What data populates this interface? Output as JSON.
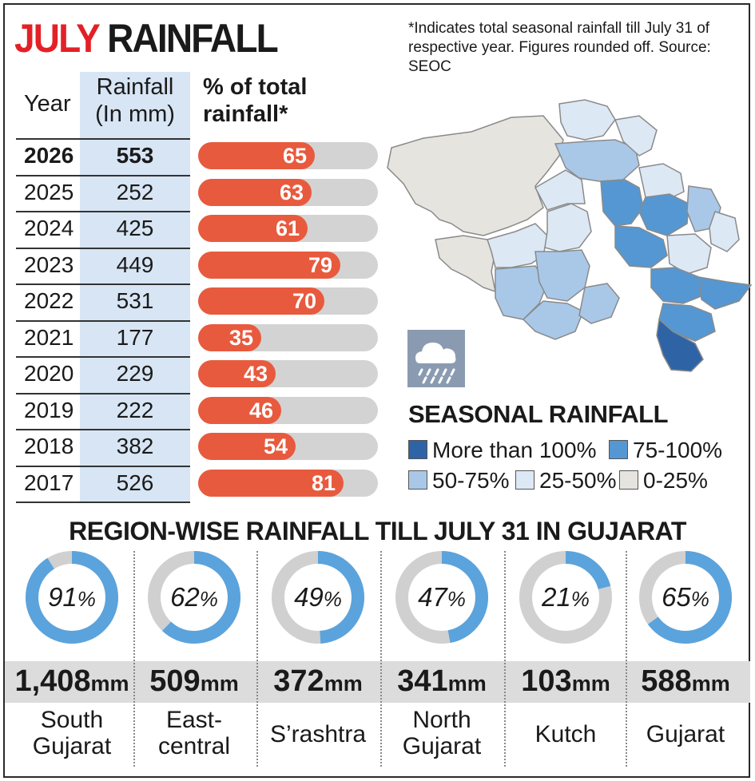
{
  "title": {
    "part1": "JULY",
    "part2": "RAINFALL"
  },
  "note": "*Indicates total seasonal rainfall till July 31 of respective year. Figures rounded off. Source: SEOC",
  "table": {
    "header_year": "Year",
    "header_rain_1": "Rainfall",
    "header_rain_2": "(In mm)",
    "header_pct_1": "% of total",
    "header_pct_2": "rainfall*"
  },
  "chart_data": [
    {
      "type": "bar",
      "title": "JULY RAINFALL",
      "categories": [
        "2026",
        "2025",
        "2024",
        "2023",
        "2022",
        "2021",
        "2020",
        "2019",
        "2018",
        "2017"
      ],
      "series": [
        {
          "name": "Rainfall (In mm)",
          "values": [
            553,
            252,
            425,
            449,
            531,
            177,
            229,
            222,
            382,
            526
          ]
        },
        {
          "name": "% of total rainfall*",
          "values": [
            65,
            63,
            61,
            79,
            70,
            35,
            43,
            46,
            54,
            81
          ]
        }
      ],
      "ylim": [
        0,
        100
      ]
    },
    {
      "type": "pie",
      "title": "REGION-WISE RAINFALL TILL JULY 31 IN GUJARAT",
      "categories": [
        "South Gujarat",
        "East-central",
        "S’rashtra",
        "North Gujarat",
        "Kutch",
        "Gujarat"
      ],
      "values": [
        91,
        62,
        49,
        47,
        21,
        65
      ],
      "mm": [
        "1,408",
        "509",
        "372",
        "341",
        "103",
        "588"
      ],
      "unit": "mm"
    }
  ],
  "map": {
    "legend_title": "SEASONAL RAINFALL",
    "legend": [
      {
        "label": "More than 100%",
        "color": "#2e64a6"
      },
      {
        "label": "75-100%",
        "color": "#5597d2"
      },
      {
        "label": "50-75%",
        "color": "#a9c8e8"
      },
      {
        "label": "25-50%",
        "color": "#dde8f5"
      },
      {
        "label": "0-25%",
        "color": "#e6e4df"
      }
    ]
  },
  "regions": [
    {
      "line1": "South",
      "line2": "Gujarat"
    },
    {
      "line1": "East-",
      "line2": "central"
    },
    {
      "line1": "S’rashtra",
      "line2": ""
    },
    {
      "line1": "North",
      "line2": "Gujarat"
    },
    {
      "line1": "Kutch",
      "line2": ""
    },
    {
      "line1": "Gujarat",
      "line2": ""
    }
  ],
  "colors": {
    "bar": "#e85a3e",
    "bar_bg": "#d3d3d3",
    "donut": "#5ba3dc",
    "donut_bg": "#d0d0d0",
    "title_red": "#e32027"
  }
}
